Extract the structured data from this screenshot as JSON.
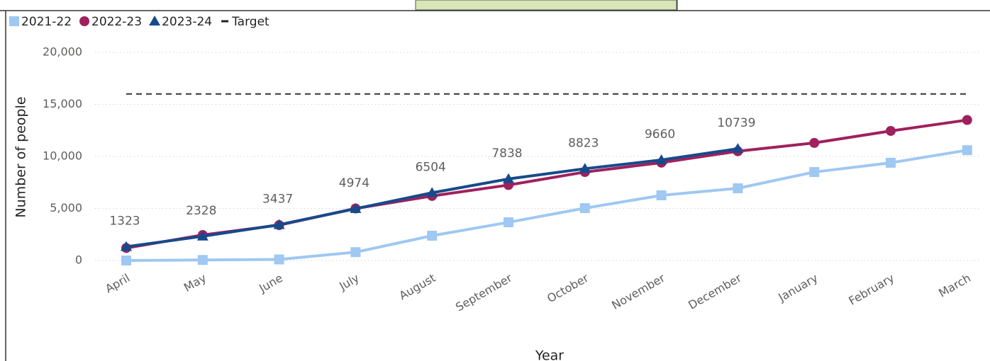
{
  "chart_data": {
    "type": "line",
    "y_label": "Number of people",
    "x_label": "Year",
    "categories": [
      "April",
      "May",
      "June",
      "July",
      "August",
      "September",
      "October",
      "November",
      "December",
      "January",
      "February",
      "March"
    ],
    "series": [
      {
        "name": "2021-22",
        "color": "#9fc8f2",
        "marker": "square",
        "values": [
          0,
          50,
          100,
          800,
          2380,
          3670,
          5030,
          6260,
          6940,
          8500,
          9390,
          10600
        ]
      },
      {
        "name": "2022-23",
        "color": "#a0205e",
        "marker": "circle",
        "values": [
          1200,
          2450,
          3400,
          5000,
          6200,
          7250,
          8500,
          9400,
          10500,
          11300,
          12450,
          13500
        ]
      },
      {
        "name": "2023-24",
        "color": "#174a8b",
        "marker": "triangle",
        "data_labels": true,
        "values": [
          1323,
          2328,
          3437,
          4974,
          6504,
          7838,
          8823,
          9660,
          10739,
          null,
          null,
          null
        ]
      },
      {
        "name": "Target",
        "color": "#333333",
        "marker": "dash",
        "dashed": true,
        "values": [
          16000,
          16000,
          16000,
          16000,
          16000,
          16000,
          16000,
          16000,
          16000,
          16000,
          16000,
          16000
        ]
      }
    ],
    "ylim": [
      0,
      20000
    ],
    "yticks": [
      0,
      {
        "value": 5000,
        "label": "5,000"
      },
      {
        "value": 10000,
        "label": "10,000"
      },
      {
        "value": 15000,
        "label": "15,000"
      },
      {
        "value": 20000,
        "label": "20,000"
      }
    ],
    "grid": true,
    "legend": "top-left"
  }
}
